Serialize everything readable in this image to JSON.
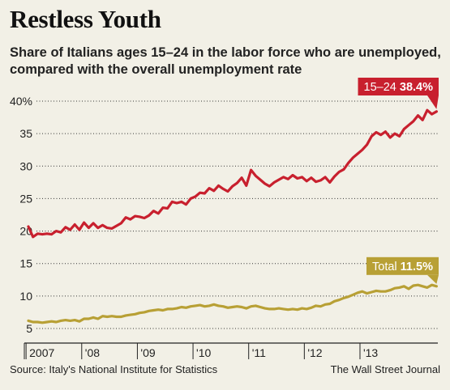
{
  "title": "Restless Youth",
  "subtitle": "Share of Italians ages 15–24 in the labor force who are unemployed, compared with the overall unemployment rate",
  "source": "Source: Italy's National Institute for Statistics",
  "credit": "The Wall Street Journal",
  "colors": {
    "youth": "#c8202e",
    "total": "#b8a035",
    "background": "#f2f0e6",
    "grid": "#333333"
  },
  "chart_data": {
    "type": "line",
    "title": "Restless Youth",
    "xlabel": "",
    "ylabel": "",
    "ylim": [
      5,
      40
    ],
    "yticks": [
      5,
      10,
      15,
      20,
      25,
      30,
      35,
      40
    ],
    "ytick_labels": [
      "5",
      "10",
      "15",
      "20",
      "25",
      "30",
      "35",
      "40%"
    ],
    "x_start": "2007-01",
    "xtick_labels": [
      "2007",
      "'08",
      "'09",
      "'10",
      "'11",
      "'12",
      "'13"
    ],
    "grid": "horizontal dotted",
    "series": [
      {
        "name": "15–24",
        "color": "#c8202e",
        "end_label_value": "38.4%",
        "values": [
          20.7,
          19.1,
          19.6,
          19.5,
          19.6,
          19.5,
          20.0,
          19.8,
          20.6,
          20.2,
          21.0,
          20.2,
          21.3,
          20.5,
          21.2,
          20.5,
          20.9,
          20.5,
          20.4,
          20.8,
          21.2,
          22.1,
          21.8,
          22.3,
          22.2,
          22.0,
          22.4,
          23.1,
          22.7,
          23.6,
          23.5,
          24.5,
          24.3,
          24.5,
          24.1,
          25.0,
          25.3,
          25.9,
          25.8,
          26.6,
          26.2,
          27.0,
          26.5,
          26.1,
          26.9,
          27.4,
          28.2,
          27.0,
          29.4,
          28.5,
          27.9,
          27.3,
          26.9,
          27.5,
          27.9,
          28.3,
          28.0,
          28.6,
          28.1,
          28.3,
          27.7,
          28.2,
          27.6,
          27.8,
          28.3,
          27.5,
          28.4,
          29.1,
          29.5,
          30.5,
          31.3,
          31.9,
          32.5,
          33.3,
          34.6,
          35.2,
          34.8,
          35.3,
          34.4,
          35.0,
          34.6,
          35.7,
          36.3,
          36.9,
          37.8,
          37.1,
          38.6,
          38.0,
          38.4
        ]
      },
      {
        "name": "Total",
        "color": "#b8a035",
        "end_label_value": "11.5%",
        "values": [
          6.2,
          6.0,
          6.0,
          5.9,
          6.0,
          6.1,
          6.0,
          6.2,
          6.3,
          6.2,
          6.3,
          6.1,
          6.5,
          6.5,
          6.7,
          6.5,
          6.9,
          6.8,
          6.9,
          6.8,
          6.8,
          7.0,
          7.1,
          7.2,
          7.4,
          7.5,
          7.7,
          7.8,
          7.9,
          7.8,
          8.0,
          8.0,
          8.1,
          8.3,
          8.2,
          8.4,
          8.5,
          8.6,
          8.4,
          8.5,
          8.7,
          8.5,
          8.4,
          8.2,
          8.3,
          8.4,
          8.3,
          8.1,
          8.4,
          8.5,
          8.3,
          8.1,
          8.0,
          8.0,
          8.1,
          8.0,
          7.9,
          8.0,
          7.9,
          8.1,
          8.0,
          8.2,
          8.5,
          8.4,
          8.7,
          8.8,
          9.2,
          9.4,
          9.7,
          9.9,
          10.2,
          10.5,
          10.7,
          10.4,
          10.6,
          10.8,
          10.7,
          10.7,
          10.9,
          11.2,
          11.3,
          11.5,
          11.1,
          11.6,
          11.7,
          11.5,
          11.3,
          11.7,
          11.5
        ]
      }
    ]
  }
}
